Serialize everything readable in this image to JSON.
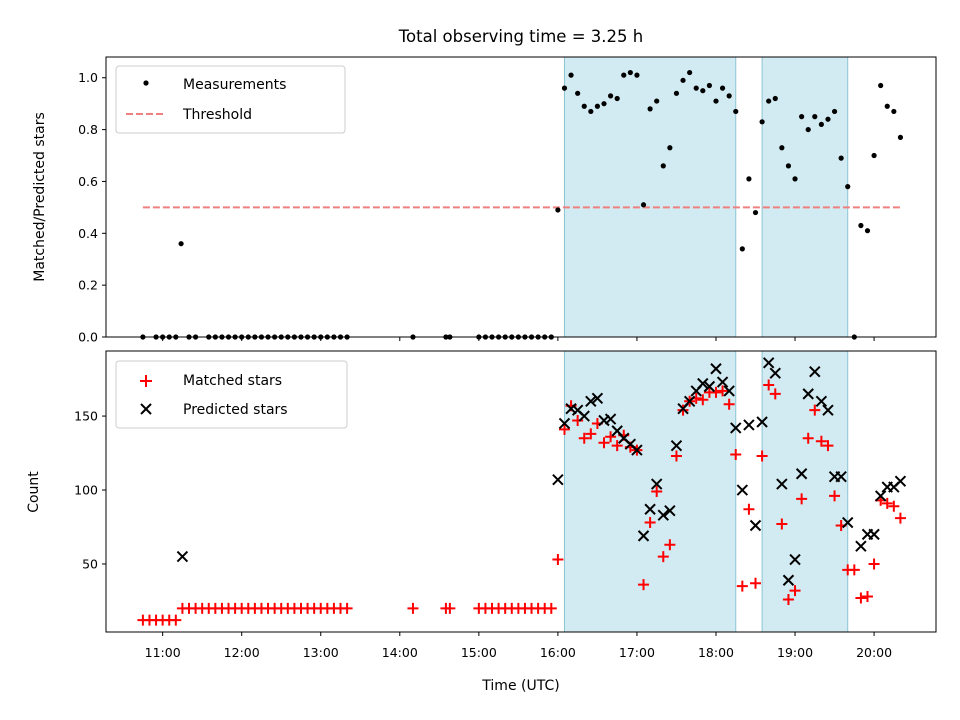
{
  "title": "Total observing time = 3.25 h",
  "colors": {
    "shade": "#add8e6",
    "threshold": "#f08080",
    "matched": "#ff0000",
    "predicted": "#000000",
    "measurement": "#000000"
  },
  "x_ticks": [
    {
      "t": 11,
      "label": "11:00"
    },
    {
      "t": 12,
      "label": "12:00"
    },
    {
      "t": 13,
      "label": "13:00"
    },
    {
      "t": 14,
      "label": "14:00"
    },
    {
      "t": 15,
      "label": "15:00"
    },
    {
      "t": 16,
      "label": "16:00"
    },
    {
      "t": 17,
      "label": "17:00"
    },
    {
      "t": 18,
      "label": "18:00"
    },
    {
      "t": 19,
      "label": "19:00"
    },
    {
      "t": 20,
      "label": "20:00"
    }
  ],
  "chart_data": [
    {
      "type": "scatter",
      "panel": "top",
      "title": "Total observing time = 3.25 h",
      "xlabel": "",
      "ylabel": "Matched/Predicted stars",
      "xlim": [
        "10:17",
        "20:47"
      ],
      "ylim": [
        0,
        1.08
      ],
      "yticks": [
        "0.0",
        "0.2",
        "0.4",
        "0.6",
        "0.8",
        "1.0"
      ],
      "legend_position": "top-left",
      "observing_windows": [
        [
          "16:05",
          "18:15"
        ],
        [
          "18:35",
          "19:40"
        ]
      ],
      "threshold": {
        "name": "Threshold",
        "y": 0.5,
        "x_range": [
          "10:45",
          "20:20"
        ],
        "style": "dashed"
      },
      "series": [
        {
          "name": "Measurements",
          "points": [
            [
              "10:45",
              0
            ],
            [
              "10:55",
              0
            ],
            [
              "11:00",
              0
            ],
            [
              "11:05",
              0
            ],
            [
              "11:10",
              0
            ],
            [
              "11:14",
              0.36
            ],
            [
              "11:20",
              0
            ],
            [
              "11:25",
              0
            ],
            [
              "11:35",
              0
            ],
            [
              "11:40",
              0
            ],
            [
              "11:45",
              0
            ],
            [
              "11:50",
              0
            ],
            [
              "11:55",
              0
            ],
            [
              "12:00",
              0
            ],
            [
              "12:05",
              0
            ],
            [
              "12:10",
              0
            ],
            [
              "12:15",
              0
            ],
            [
              "12:20",
              0
            ],
            [
              "12:25",
              0
            ],
            [
              "12:30",
              0
            ],
            [
              "12:35",
              0
            ],
            [
              "12:40",
              0
            ],
            [
              "12:45",
              0
            ],
            [
              "12:50",
              0
            ],
            [
              "12:55",
              0
            ],
            [
              "13:00",
              0
            ],
            [
              "13:05",
              0
            ],
            [
              "13:10",
              0
            ],
            [
              "13:15",
              0
            ],
            [
              "13:20",
              0
            ],
            [
              "14:10",
              0
            ],
            [
              "14:35",
              0
            ],
            [
              "14:38",
              0
            ],
            [
              "15:00",
              0
            ],
            [
              "15:05",
              0
            ],
            [
              "15:10",
              0
            ],
            [
              "15:15",
              0
            ],
            [
              "15:20",
              0
            ],
            [
              "15:25",
              0
            ],
            [
              "15:30",
              0
            ],
            [
              "15:35",
              0
            ],
            [
              "15:40",
              0
            ],
            [
              "15:45",
              0
            ],
            [
              "15:50",
              0
            ],
            [
              "15:55",
              0
            ],
            [
              "16:00",
              0.49
            ],
            [
              "16:05",
              0.96
            ],
            [
              "16:10",
              1.01
            ],
            [
              "16:15",
              0.94
            ],
            [
              "16:20",
              0.89
            ],
            [
              "16:25",
              0.87
            ],
            [
              "16:30",
              0.89
            ],
            [
              "16:35",
              0.9
            ],
            [
              "16:40",
              0.93
            ],
            [
              "16:45",
              0.92
            ],
            [
              "16:50",
              1.01
            ],
            [
              "16:55",
              1.02
            ],
            [
              "17:00",
              1.01
            ],
            [
              "17:05",
              0.51
            ],
            [
              "17:10",
              0.88
            ],
            [
              "17:15",
              0.91
            ],
            [
              "17:20",
              0.66
            ],
            [
              "17:25",
              0.73
            ],
            [
              "17:30",
              0.94
            ],
            [
              "17:35",
              0.99
            ],
            [
              "17:40",
              1.02
            ],
            [
              "17:45",
              0.96
            ],
            [
              "17:50",
              0.95
            ],
            [
              "17:55",
              0.97
            ],
            [
              "18:00",
              0.91
            ],
            [
              "18:05",
              0.96
            ],
            [
              "18:10",
              0.93
            ],
            [
              "18:15",
              0.87
            ],
            [
              "18:20",
              0.34
            ],
            [
              "18:25",
              0.61
            ],
            [
              "18:30",
              0.48
            ],
            [
              "18:35",
              0.83
            ],
            [
              "18:40",
              0.91
            ],
            [
              "18:45",
              0.92
            ],
            [
              "18:50",
              0.73
            ],
            [
              "18:55",
              0.66
            ],
            [
              "19:00",
              0.61
            ],
            [
              "19:05",
              0.85
            ],
            [
              "19:10",
              0.8
            ],
            [
              "19:15",
              0.85
            ],
            [
              "19:20",
              0.82
            ],
            [
              "19:25",
              0.84
            ],
            [
              "19:30",
              0.87
            ],
            [
              "19:35",
              0.69
            ],
            [
              "19:40",
              0.58
            ],
            [
              "19:45",
              0
            ],
            [
              "19:50",
              0.43
            ],
            [
              "19:55",
              0.41
            ],
            [
              "20:00",
              0.7
            ],
            [
              "20:05",
              0.97
            ],
            [
              "20:10",
              0.89
            ],
            [
              "20:15",
              0.87
            ],
            [
              "20:20",
              0.77
            ]
          ]
        }
      ]
    },
    {
      "type": "scatter",
      "panel": "bottom",
      "xlabel": "Time (UTC)",
      "ylabel": "Count",
      "xlim": [
        "10:17",
        "20:47"
      ],
      "ylim": [
        4,
        194
      ],
      "yticks": [
        "50",
        "100",
        "150"
      ],
      "legend_position": "top-left",
      "observing_windows": [
        [
          "16:05",
          "18:15"
        ],
        [
          "18:35",
          "19:40"
        ]
      ],
      "series": [
        {
          "name": "Matched stars",
          "marker": "+",
          "points": [
            [
              "10:45",
              12
            ],
            [
              "10:50",
              12
            ],
            [
              "10:55",
              12
            ],
            [
              "11:00",
              12
            ],
            [
              "11:05",
              12
            ],
            [
              "11:10",
              12
            ],
            [
              "11:15",
              20
            ],
            [
              "11:20",
              20
            ],
            [
              "11:25",
              20
            ],
            [
              "11:30",
              20
            ],
            [
              "11:35",
              20
            ],
            [
              "11:40",
              20
            ],
            [
              "11:45",
              20
            ],
            [
              "11:50",
              20
            ],
            [
              "11:55",
              20
            ],
            [
              "12:00",
              20
            ],
            [
              "12:05",
              20
            ],
            [
              "12:10",
              20
            ],
            [
              "12:15",
              20
            ],
            [
              "12:20",
              20
            ],
            [
              "12:25",
              20
            ],
            [
              "12:30",
              20
            ],
            [
              "12:35",
              20
            ],
            [
              "12:40",
              20
            ],
            [
              "12:45",
              20
            ],
            [
              "12:50",
              20
            ],
            [
              "12:55",
              20
            ],
            [
              "13:00",
              20
            ],
            [
              "13:05",
              20
            ],
            [
              "13:10",
              20
            ],
            [
              "13:15",
              20
            ],
            [
              "13:20",
              20
            ],
            [
              "14:10",
              20
            ],
            [
              "14:35",
              20
            ],
            [
              "14:38",
              20
            ],
            [
              "15:00",
              20
            ],
            [
              "15:05",
              20
            ],
            [
              "15:10",
              20
            ],
            [
              "15:15",
              20
            ],
            [
              "15:20",
              20
            ],
            [
              "15:25",
              20
            ],
            [
              "15:30",
              20
            ],
            [
              "15:35",
              20
            ],
            [
              "15:40",
              20
            ],
            [
              "15:45",
              20
            ],
            [
              "15:50",
              20
            ],
            [
              "15:55",
              20
            ],
            [
              "16:00",
              53
            ],
            [
              "16:05",
              141
            ],
            [
              "16:10",
              157
            ],
            [
              "16:15",
              147
            ],
            [
              "16:20",
              135
            ],
            [
              "16:25",
              138
            ],
            [
              "16:30",
              145
            ],
            [
              "16:35",
              132
            ],
            [
              "16:40",
              136
            ],
            [
              "16:45",
              130
            ],
            [
              "16:50",
              137
            ],
            [
              "16:55",
              129
            ],
            [
              "17:00",
              127
            ],
            [
              "17:05",
              36
            ],
            [
              "17:10",
              78
            ],
            [
              "17:15",
              99
            ],
            [
              "17:20",
              55
            ],
            [
              "17:25",
              63
            ],
            [
              "17:30",
              123
            ],
            [
              "17:35",
              154
            ],
            [
              "17:40",
              160
            ],
            [
              "17:45",
              162
            ],
            [
              "17:50",
              161
            ],
            [
              "17:55",
              166
            ],
            [
              "18:00",
              166
            ],
            [
              "18:05",
              167
            ],
            [
              "18:10",
              158
            ],
            [
              "18:15",
              124
            ],
            [
              "18:20",
              35
            ],
            [
              "18:25",
              87
            ],
            [
              "18:30",
              37
            ],
            [
              "18:35",
              123
            ],
            [
              "18:40",
              171
            ],
            [
              "18:45",
              165
            ],
            [
              "18:50",
              77
            ],
            [
              "18:55",
              26
            ],
            [
              "19:00",
              32
            ],
            [
              "19:05",
              94
            ],
            [
              "19:10",
              135
            ],
            [
              "19:15",
              154
            ],
            [
              "19:20",
              133
            ],
            [
              "19:25",
              130
            ],
            [
              "19:30",
              96
            ],
            [
              "19:35",
              76
            ],
            [
              "19:40",
              46
            ],
            [
              "19:45",
              46
            ],
            [
              "19:50",
              27
            ],
            [
              "19:55",
              28
            ],
            [
              "20:00",
              50
            ],
            [
              "20:05",
              93
            ],
            [
              "20:10",
              91
            ],
            [
              "20:15",
              89
            ],
            [
              "20:20",
              81
            ]
          ]
        },
        {
          "name": "Predicted stars",
          "marker": "x",
          "points": [
            [
              "11:15",
              55
            ],
            [
              "16:00",
              107
            ],
            [
              "16:05",
              145
            ],
            [
              "16:10",
              155
            ],
            [
              "16:15",
              154
            ],
            [
              "16:20",
              150
            ],
            [
              "16:25",
              160
            ],
            [
              "16:30",
              162
            ],
            [
              "16:35",
              147
            ],
            [
              "16:40",
              148
            ],
            [
              "16:45",
              140
            ],
            [
              "16:50",
              135
            ],
            [
              "16:55",
              131
            ],
            [
              "17:00",
              127
            ],
            [
              "17:05",
              69
            ],
            [
              "17:10",
              87
            ],
            [
              "17:15",
              104
            ],
            [
              "17:20",
              83
            ],
            [
              "17:25",
              86
            ],
            [
              "17:30",
              130
            ],
            [
              "17:35",
              155
            ],
            [
              "17:40",
              160
            ],
            [
              "17:45",
              167
            ],
            [
              "17:50",
              172
            ],
            [
              "17:55",
              170
            ],
            [
              "18:00",
              182
            ],
            [
              "18:05",
              173
            ],
            [
              "18:10",
              167
            ],
            [
              "18:15",
              142
            ],
            [
              "18:20",
              100
            ],
            [
              "18:25",
              144
            ],
            [
              "18:30",
              76
            ],
            [
              "18:35",
              146
            ],
            [
              "18:40",
              186
            ],
            [
              "18:45",
              179
            ],
            [
              "18:50",
              104
            ],
            [
              "18:55",
              39
            ],
            [
              "19:00",
              53
            ],
            [
              "19:05",
              111
            ],
            [
              "19:10",
              165
            ],
            [
              "19:15",
              180
            ],
            [
              "19:20",
              160
            ],
            [
              "19:25",
              154
            ],
            [
              "19:30",
              109
            ],
            [
              "19:35",
              109
            ],
            [
              "19:40",
              78
            ],
            [
              "19:50",
              62
            ],
            [
              "19:55",
              70
            ],
            [
              "20:00",
              70
            ],
            [
              "20:05",
              96
            ],
            [
              "20:10",
              102
            ],
            [
              "20:15",
              102
            ],
            [
              "20:20",
              106
            ]
          ]
        }
      ]
    }
  ]
}
